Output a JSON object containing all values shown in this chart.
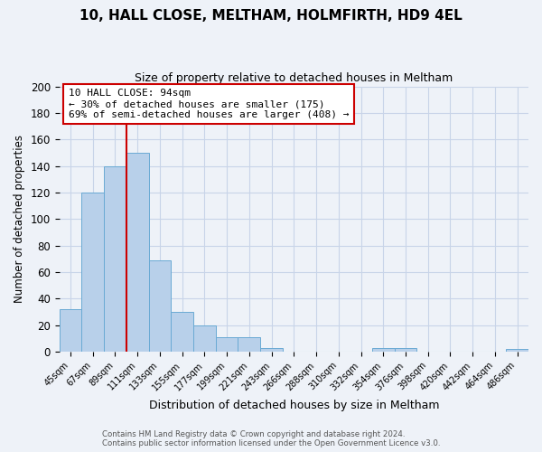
{
  "title": "10, HALL CLOSE, MELTHAM, HOLMFIRTH, HD9 4EL",
  "subtitle": "Size of property relative to detached houses in Meltham",
  "xlabel": "Distribution of detached houses by size in Meltham",
  "ylabel": "Number of detached properties",
  "bar_labels": [
    "45sqm",
    "67sqm",
    "89sqm",
    "111sqm",
    "133sqm",
    "155sqm",
    "177sqm",
    "199sqm",
    "221sqm",
    "243sqm",
    "266sqm",
    "288sqm",
    "310sqm",
    "332sqm",
    "354sqm",
    "376sqm",
    "398sqm",
    "420sqm",
    "442sqm",
    "464sqm",
    "486sqm"
  ],
  "bar_values": [
    32,
    120,
    140,
    150,
    69,
    30,
    20,
    11,
    11,
    3,
    0,
    0,
    0,
    0,
    3,
    3,
    0,
    0,
    0,
    0,
    2
  ],
  "bar_color": "#b8d0ea",
  "bar_edge_color": "#6aaad4",
  "vline_color": "#cc0000",
  "annotation_box_text": "10 HALL CLOSE: 94sqm\n← 30% of detached houses are smaller (175)\n69% of semi-detached houses are larger (408) →",
  "ylim": [
    0,
    200
  ],
  "yticks": [
    0,
    20,
    40,
    60,
    80,
    100,
    120,
    140,
    160,
    180,
    200
  ],
  "footer_line1": "Contains HM Land Registry data © Crown copyright and database right 2024.",
  "footer_line2": "Contains public sector information licensed under the Open Government Licence v3.0.",
  "background_color": "#eef2f8",
  "grid_color": "#c8d4e8"
}
